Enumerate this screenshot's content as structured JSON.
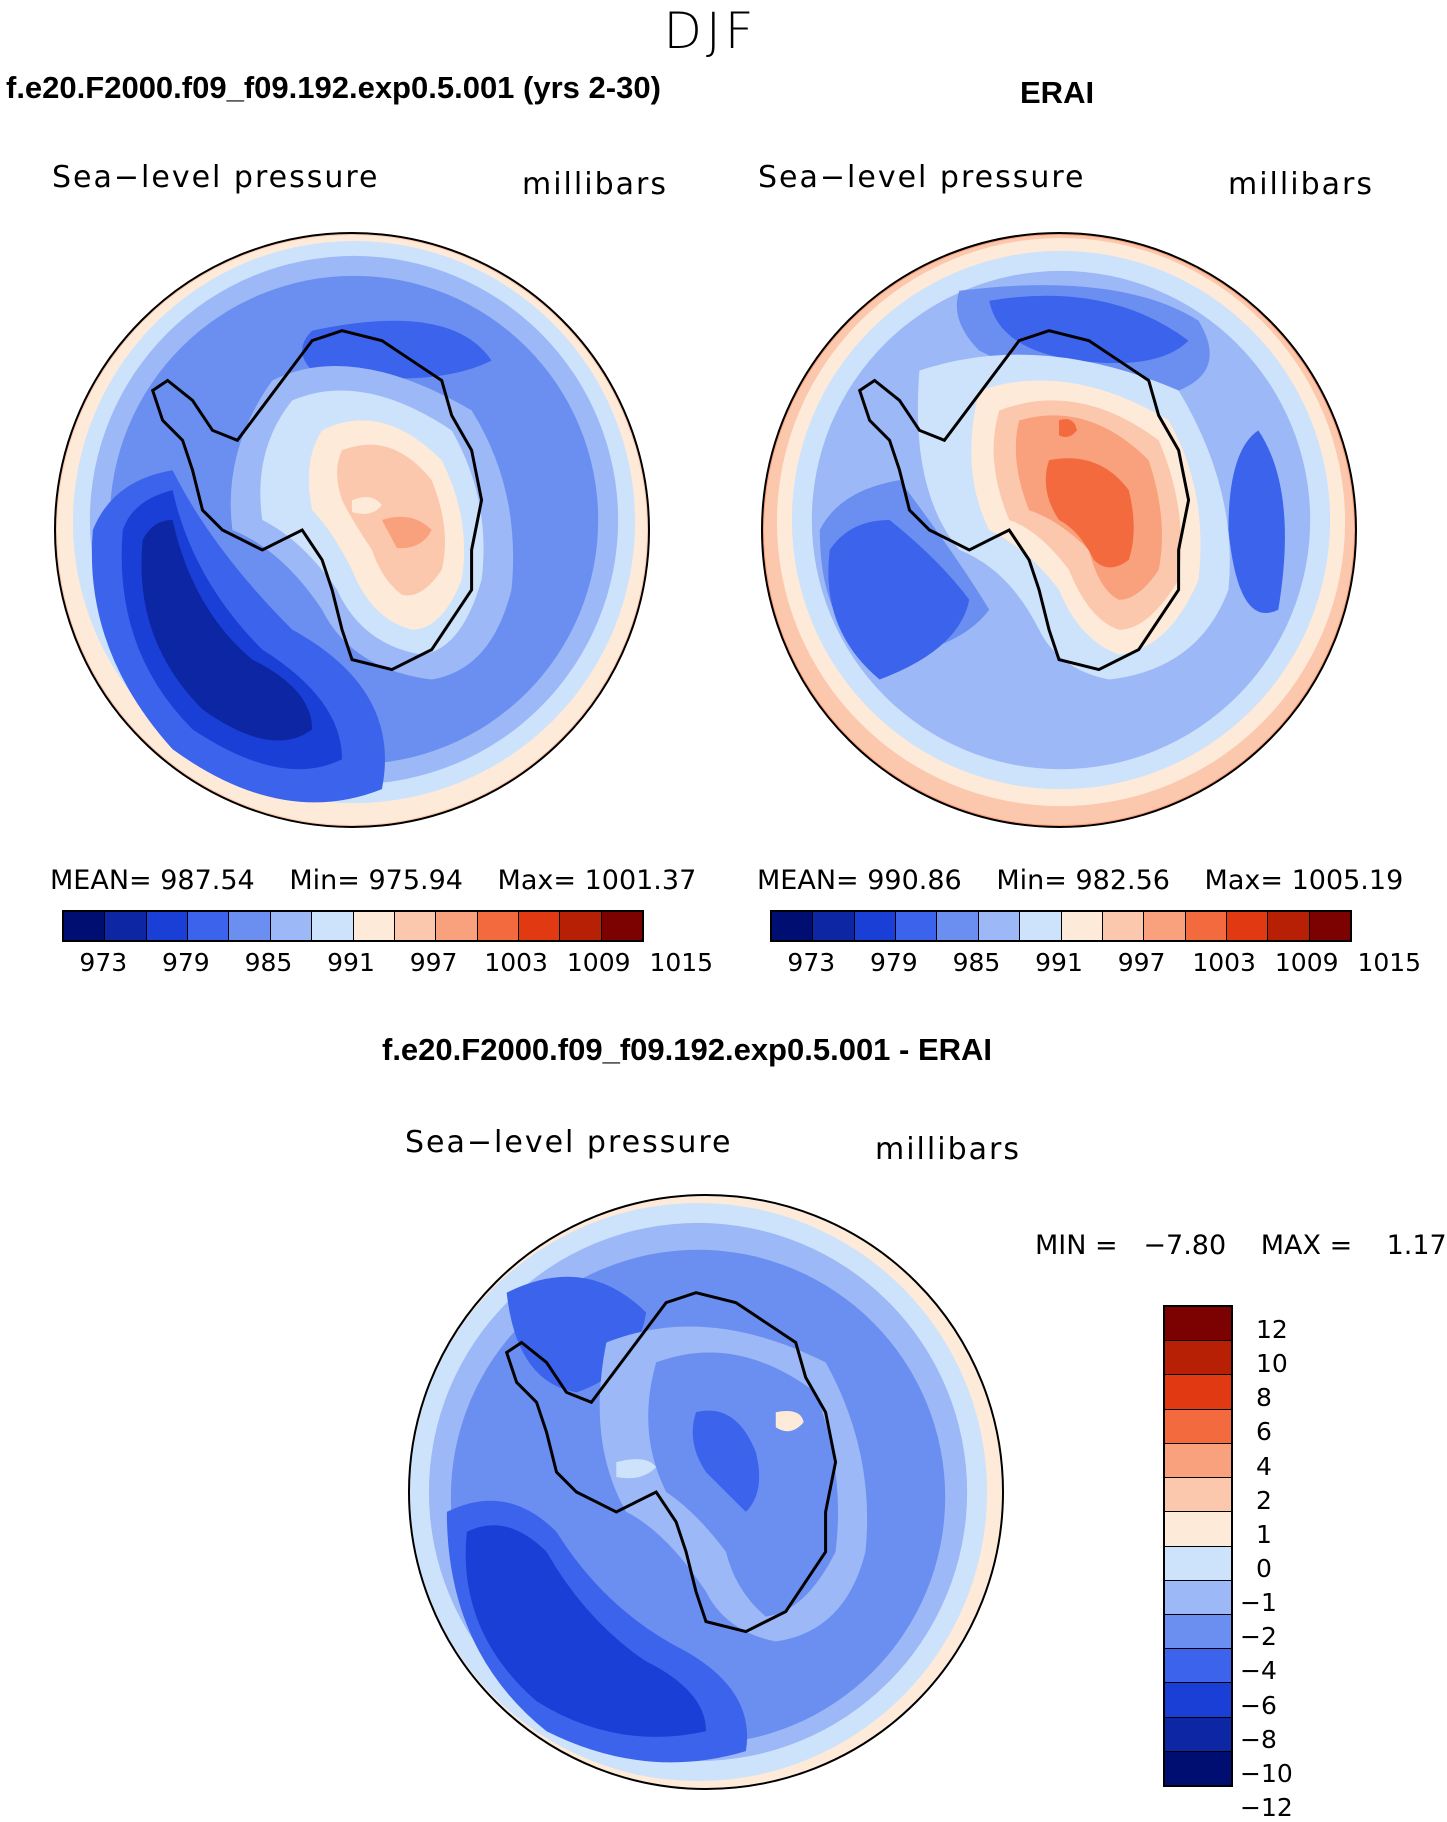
{
  "figure": {
    "season": "DJF",
    "colors": {
      "abs": [
        "#000e72",
        "#0c26a4",
        "#1a3fd6",
        "#3c63ec",
        "#6a8ff0",
        "#9cb8f6",
        "#cde2fb",
        "#feead9",
        "#fcc8ad",
        "#f9a07c",
        "#f26a3e",
        "#e13a13",
        "#b82006",
        "#7b0200"
      ],
      "diff": [
        "#7b0200",
        "#b82006",
        "#e13a13",
        "#f26a3e",
        "#f9a07c",
        "#fcc8ad",
        "#feead9",
        "#cde2fb",
        "#9cb8f6",
        "#6a8ff0",
        "#3c63ec",
        "#1a3fd6",
        "#0c26a4",
        "#000e72"
      ]
    }
  },
  "panels": {
    "model": {
      "title": "f.e20.F2000.f09_f09.192.exp0.5.001 (yrs 2-30)",
      "variable": "Sea−level pressure",
      "units": "millibars",
      "mean_label": "MEAN=",
      "mean": "987.54",
      "min_label": "Min=",
      "min": "975.94",
      "max_label": "Max=",
      "max": "1001.37"
    },
    "obs": {
      "title": "ERAI",
      "variable": "Sea−level pressure",
      "units": "millibars",
      "mean_label": "MEAN=",
      "mean": "990.86",
      "min_label": "Min=",
      "min": "982.56",
      "max_label": "Max=",
      "max": "1005.19"
    },
    "diff": {
      "title": "f.e20.F2000.f09_f09.192.exp0.5.001 - ERAI",
      "variable": "Sea−level pressure",
      "units": "millibars",
      "min_label": "MIN =",
      "min": "−7.80",
      "max_label": "MAX =",
      "max": "1.17"
    }
  },
  "colorbars": {
    "abs_ticks": [
      "973",
      "979",
      "985",
      "991",
      "997",
      "1003",
      "1009",
      "1015"
    ],
    "diff_ticks": [
      "12",
      "10",
      "8",
      "6",
      "4",
      "2",
      "1",
      "0",
      "−1",
      "−2",
      "−4",
      "−6",
      "−8",
      "−10",
      "−12"
    ]
  }
}
